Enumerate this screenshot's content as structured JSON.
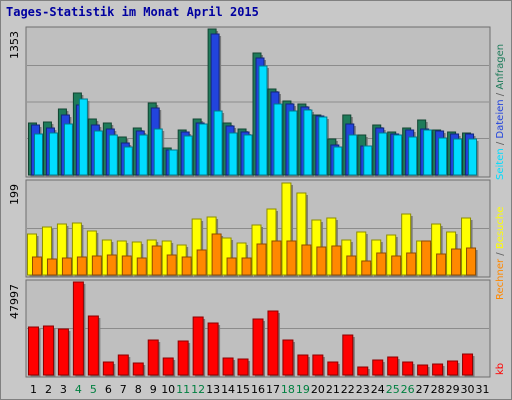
{
  "title": "Tages-Statistik im Monat April 2015",
  "chart_data": {
    "type": "bar",
    "title": "Tages-Statistik im Monat April 2015",
    "categories": [
      "1",
      "2",
      "3",
      "4",
      "5",
      "6",
      "7",
      "8",
      "9",
      "10",
      "11",
      "12",
      "13",
      "14",
      "15",
      "16",
      "17",
      "18",
      "19",
      "20",
      "21",
      "22",
      "23",
      "24",
      "25",
      "26",
      "27",
      "28",
      "29",
      "30",
      "31"
    ],
    "weekend_days": [
      "4",
      "5",
      "11",
      "12",
      "18",
      "19",
      "25",
      "26"
    ],
    "panels": [
      {
        "name": "requests",
        "ymax_label": "1353",
        "ymax": 1353,
        "right_labels": [
          "Seiten",
          "Dateien",
          "Anfragen"
        ],
        "series": [
          {
            "name": "Anfragen",
            "color": "#1e7b5a",
            "values": [
              480,
              490,
              610,
              760,
              520,
              480,
              350,
              440,
              670,
              250,
              420,
              520,
              1353,
              480,
              430,
              1130,
              800,
              690,
              660,
              560,
              330,
              560,
              370,
              460,
              400,
              440,
              510,
              420,
              400,
              390,
              0
            ]
          },
          {
            "name": "Dateien",
            "color": "#2244dd",
            "values": [
              460,
              440,
              560,
              650,
              460,
              430,
              300,
              410,
              620,
              230,
              400,
              480,
              1310,
              450,
              400,
              1080,
              770,
              660,
              630,
              550,
              280,
              470,
              270,
              440,
              380,
              420,
              430,
              410,
              380,
              380,
              0
            ]
          },
          {
            "name": "Seiten",
            "color": "#00ddff",
            "values": [
              380,
              390,
              470,
              700,
              410,
              370,
              260,
              370,
              430,
              230,
              360,
              470,
              590,
              390,
              370,
              1010,
              660,
              590,
              600,
              540,
              260,
              370,
              270,
              390,
              370,
              350,
              420,
              340,
              330,
              330,
              0
            ]
          }
        ]
      },
      {
        "name": "visits",
        "ymax_label": "199",
        "ymax": 199,
        "right_labels": [
          "Rechner",
          "Besuche"
        ],
        "series": [
          {
            "name": "Besuche",
            "color": "#ffff00",
            "values": [
              88,
              103,
              110,
              112,
              95,
              75,
              72,
              70,
              74,
              73,
              65,
              119,
              124,
              80,
              68,
              108,
              141,
              196,
              176,
              118,
              122,
              74,
              92,
              74,
              86,
              130,
              72,
              110,
              93,
              122,
              0
            ]
          },
          {
            "name": "Rechner",
            "color": "#ff8800",
            "values": [
              38,
              35,
              37,
              38,
              41,
              42,
              40,
              36,
              61,
              42,
              38,
              54,
              88,
              37,
              36,
              67,
              72,
              72,
              65,
              60,
              62,
              40,
              31,
              47,
              40,
              48,
              72,
              45,
              55,
              58,
              0
            ]
          }
        ]
      },
      {
        "name": "traffic",
        "ymax_label": "47997",
        "ymax": 47997,
        "right_labels": [
          "kb"
        ],
        "series": [
          {
            "name": "kb",
            "color": "#ff0000",
            "values": [
              25000,
              25500,
              23500,
              47997,
              30500,
              6800,
              10300,
              6200,
              18000,
              8800,
              17400,
              29700,
              27000,
              8800,
              8400,
              29000,
              33000,
              18000,
              10300,
              10200,
              6800,
              20600,
              4200,
              7500,
              9500,
              6500,
              5400,
              5800,
              7000,
              10800,
              0
            ]
          }
        ]
      }
    ],
    "colors": {
      "title": "#0000a0",
      "frame": "#c8c8c8",
      "plot_bg": "#bfbfbf",
      "weekday_label": "#000000",
      "weekend_label": "#008040",
      "Anfragen": "#1e7b5a",
      "Dateien": "#2244dd",
      "Seiten": "#00ddff",
      "Besuche": "#ffff00",
      "Rechner": "#ff8800",
      "kb": "#ff0000"
    }
  }
}
